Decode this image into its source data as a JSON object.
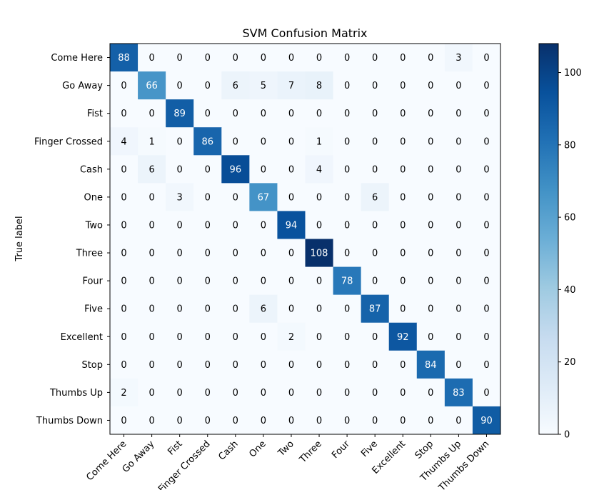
{
  "chart_data": {
    "type": "heatmap",
    "title": "SVM Confusion Matrix",
    "ylabel": "True label",
    "xlabel": "",
    "labels": [
      "Come Here",
      "Go Away",
      "Fist",
      "Finger Crossed",
      "Cash",
      "One",
      "Two",
      "Three",
      "Four",
      "Five",
      "Excellent",
      "Stop",
      "Thumbs Up",
      "Thumbs Down"
    ],
    "matrix": [
      [
        88,
        0,
        0,
        0,
        0,
        0,
        0,
        0,
        0,
        0,
        0,
        0,
        3,
        0
      ],
      [
        0,
        66,
        0,
        0,
        6,
        5,
        7,
        8,
        0,
        0,
        0,
        0,
        0,
        0
      ],
      [
        0,
        0,
        89,
        0,
        0,
        0,
        0,
        0,
        0,
        0,
        0,
        0,
        0,
        0
      ],
      [
        4,
        1,
        0,
        86,
        0,
        0,
        0,
        1,
        0,
        0,
        0,
        0,
        0,
        0
      ],
      [
        0,
        6,
        0,
        0,
        96,
        0,
        0,
        4,
        0,
        0,
        0,
        0,
        0,
        0
      ],
      [
        0,
        0,
        3,
        0,
        0,
        67,
        0,
        0,
        0,
        6,
        0,
        0,
        0,
        0
      ],
      [
        0,
        0,
        0,
        0,
        0,
        0,
        94,
        0,
        0,
        0,
        0,
        0,
        0,
        0
      ],
      [
        0,
        0,
        0,
        0,
        0,
        0,
        0,
        108,
        0,
        0,
        0,
        0,
        0,
        0
      ],
      [
        0,
        0,
        0,
        0,
        0,
        0,
        0,
        0,
        78,
        0,
        0,
        0,
        0,
        0
      ],
      [
        0,
        0,
        0,
        0,
        0,
        6,
        0,
        0,
        0,
        87,
        0,
        0,
        0,
        0
      ],
      [
        0,
        0,
        0,
        0,
        0,
        0,
        2,
        0,
        0,
        0,
        92,
        0,
        0,
        0
      ],
      [
        0,
        0,
        0,
        0,
        0,
        0,
        0,
        0,
        0,
        0,
        0,
        84,
        0,
        0
      ],
      [
        2,
        0,
        0,
        0,
        0,
        0,
        0,
        0,
        0,
        0,
        0,
        0,
        83,
        0
      ],
      [
        0,
        0,
        0,
        0,
        0,
        0,
        0,
        0,
        0,
        0,
        0,
        0,
        0,
        90
      ]
    ],
    "colorscale": "Blues",
    "vmin": 0,
    "vmax": 108,
    "colorbar_ticks": [
      0,
      20,
      40,
      60,
      80,
      100
    ],
    "grid": false
  }
}
